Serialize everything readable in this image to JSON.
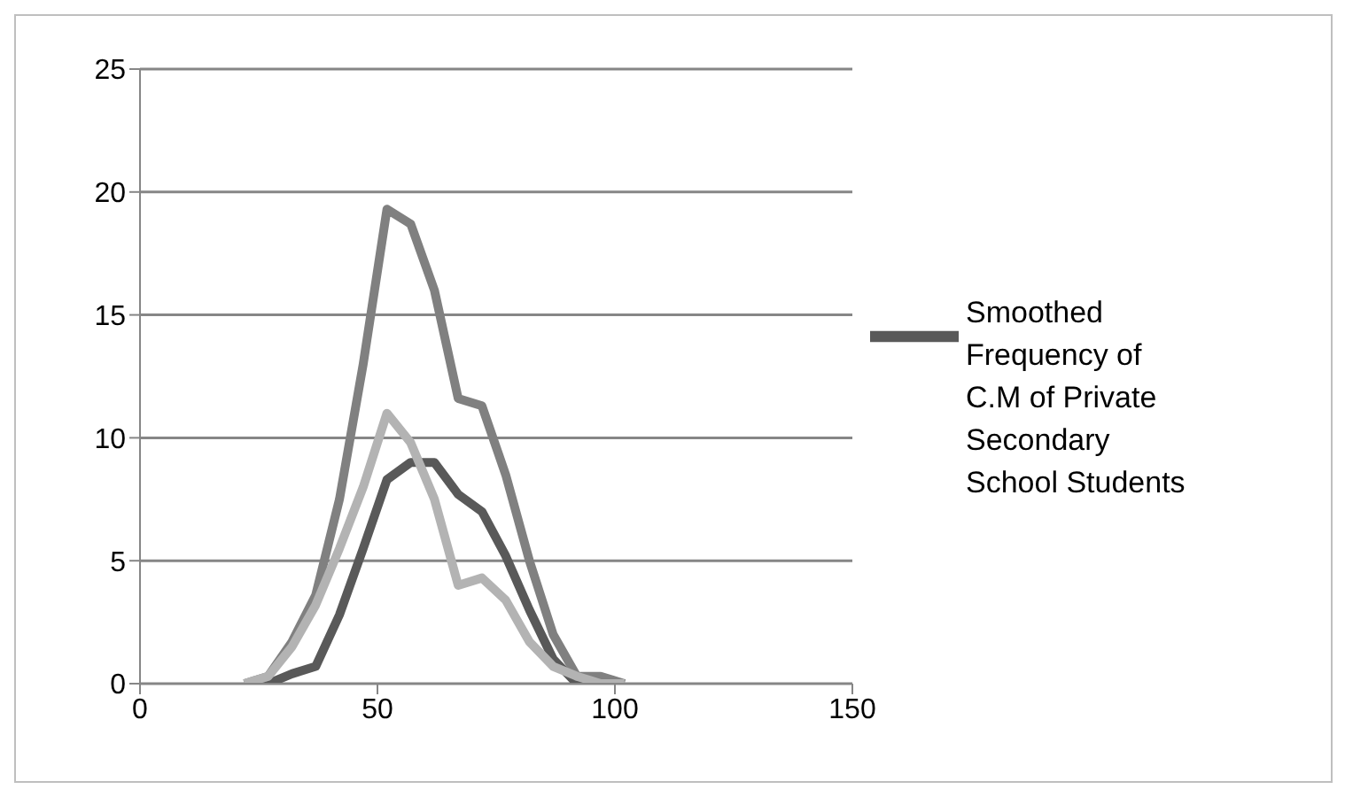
{
  "chart_data": {
    "type": "line",
    "x": [
      22,
      27,
      32,
      37,
      42,
      47,
      52,
      57,
      62,
      67,
      72,
      77,
      82,
      87,
      92,
      97,
      102
    ],
    "series": [
      {
        "name": "Smoothed Frequency of C.M of Private Secondary School Students",
        "color": "#595959",
        "values": [
          0,
          0,
          0.4,
          0.7,
          2.8,
          5.5,
          8.3,
          9,
          9,
          7.7,
          7,
          5.2,
          3,
          1,
          0,
          0,
          0
        ]
      },
      {
        "color": "#808080",
        "values": [
          0,
          0.3,
          1.7,
          3.6,
          7.5,
          13,
          19.3,
          18.7,
          16,
          11.6,
          11.3,
          8.5,
          5,
          2,
          0.3,
          0.3,
          0
        ]
      },
      {
        "color": "#b3b3b3",
        "values": [
          0,
          0.3,
          1.5,
          3.2,
          5.5,
          8,
          11,
          9.8,
          7.5,
          4,
          4.3,
          3.4,
          1.7,
          0.7,
          0.3,
          0,
          0
        ]
      }
    ],
    "xlim": [
      0,
      150
    ],
    "xticks": [
      0,
      50,
      100,
      150
    ],
    "ylim": [
      0,
      25
    ],
    "yticks": [
      0,
      5,
      10,
      15,
      20,
      25
    ],
    "grid": "y",
    "legend": "right",
    "marker": "none",
    "line_style": "solid"
  }
}
